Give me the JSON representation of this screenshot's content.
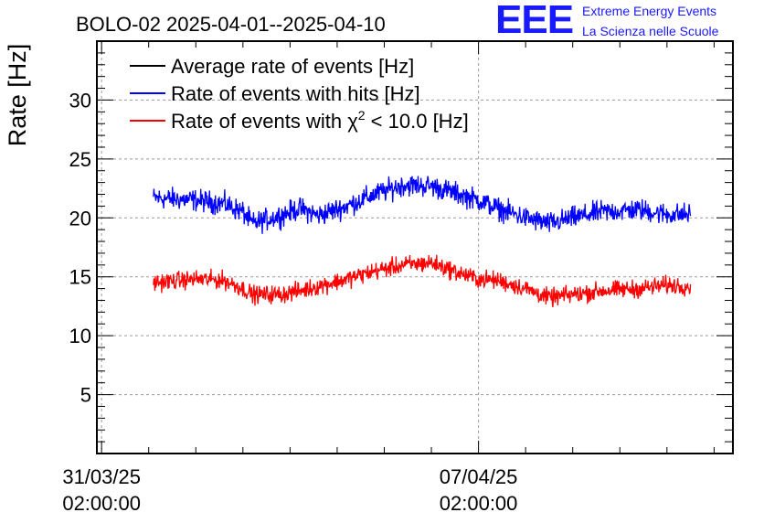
{
  "logo": {
    "letters": "EEE",
    "line1": "Extreme Energy Events",
    "line2": "La Scienza nelle Scuole"
  },
  "chart_data": {
    "type": "line",
    "title": "BOLO-02 2025-04-01--2025-04-10",
    "ylabel": "Rate [Hz]",
    "xlabel": "",
    "ylim": [
      0,
      35
    ],
    "yticks": [
      5,
      10,
      15,
      20,
      25,
      30
    ],
    "ytick_labels": [
      "5",
      "10",
      "15",
      "20",
      "25",
      "30"
    ],
    "xlim_days": [
      -0.05,
      6.7
    ],
    "xticks": [
      {
        "day": 0,
        "label_date": "31/03/25",
        "label_time": "02:00:00"
      },
      {
        "day": 4,
        "label_date": "07/04/25",
        "label_time": "02:00:00"
      }
    ],
    "grid": true,
    "legend_position": "top-left",
    "legend": [
      {
        "name": "Average rate of events [Hz]",
        "color": "#000000"
      },
      {
        "name": "Rate of events with hits [Hz]",
        "color": "#0000ff"
      },
      {
        "name": "Rate of events with χ² < 10.0 [Hz]",
        "color": "#ff0000",
        "label_pre": "Rate of events with χ",
        "label_sup": "2",
        "label_post": " < 10.0 [Hz]"
      }
    ],
    "series": [
      {
        "name": "Rate of events with hits [Hz]",
        "color": "#0000ff",
        "x_start_day": 0.55,
        "x_end_day": 6.25,
        "noise_amplitude": 0.8,
        "x_days": [
          0.55,
          1.0,
          1.3,
          1.5,
          1.6,
          1.9,
          2.1,
          2.3,
          2.6,
          2.9,
          3.2,
          3.5,
          3.8,
          4.0,
          4.2,
          4.5,
          4.75,
          5.0,
          5.3,
          5.7,
          6.0,
          6.25
        ],
        "values": [
          21.7,
          21.5,
          21.2,
          20.5,
          19.5,
          20.2,
          20.8,
          20.2,
          21.0,
          22.0,
          22.8,
          22.7,
          22.0,
          21.5,
          20.8,
          20.0,
          19.5,
          20.0,
          20.5,
          20.7,
          20.3,
          20.3
        ]
      },
      {
        "name": "Rate of events with χ² < 10.0 [Hz]",
        "color": "#ff0000",
        "x_start_day": 0.55,
        "x_end_day": 6.25,
        "noise_amplitude": 0.65,
        "x_days": [
          0.55,
          1.0,
          1.3,
          1.5,
          1.6,
          1.9,
          2.1,
          2.3,
          2.6,
          2.9,
          3.2,
          3.5,
          3.8,
          4.0,
          4.2,
          4.5,
          4.75,
          5.0,
          5.3,
          5.7,
          6.0,
          6.25
        ],
        "values": [
          14.5,
          14.8,
          14.7,
          14.0,
          13.5,
          13.5,
          13.8,
          14.2,
          14.8,
          15.5,
          16.0,
          16.2,
          15.3,
          14.8,
          14.7,
          14.0,
          13.2,
          13.5,
          13.8,
          14.0,
          14.3,
          14.2
        ]
      }
    ]
  }
}
